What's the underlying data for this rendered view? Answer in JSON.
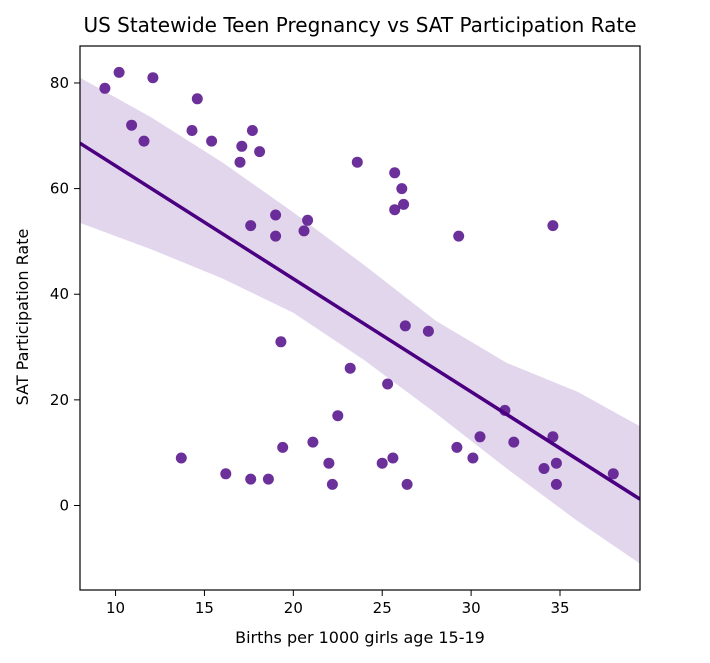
{
  "chart_data": {
    "type": "scatter",
    "title": "US Statewide Teen Pregnancy vs SAT Participation Rate",
    "xlabel": "Births per 1000 girls age 15-19",
    "ylabel": "SAT Participation Rate",
    "xlim": [
      8,
      39.5
    ],
    "ylim": [
      -16,
      87
    ],
    "xticks": [
      10,
      15,
      20,
      25,
      30,
      35
    ],
    "yticks": [
      0,
      20,
      40,
      60,
      80
    ],
    "grid": false,
    "legend": "none",
    "colors": {
      "point": "#5c1a8f",
      "regression_line": "#4b0082",
      "confidence_band": "#e2d6ec",
      "axes": "#000000"
    },
    "series": [
      {
        "points": [
          [
            9.4,
            79
          ],
          [
            10.2,
            82
          ],
          [
            10.9,
            72
          ],
          [
            11.6,
            69
          ],
          [
            12.1,
            81
          ],
          [
            14.3,
            71
          ],
          [
            14.6,
            77
          ],
          [
            15.4,
            69
          ],
          [
            17.0,
            65
          ],
          [
            17.1,
            68
          ],
          [
            17.7,
            71
          ],
          [
            18.1,
            67
          ],
          [
            17.6,
            53
          ],
          [
            19.0,
            55
          ],
          [
            19.0,
            51
          ],
          [
            20.6,
            52
          ],
          [
            20.8,
            54
          ],
          [
            23.6,
            65
          ],
          [
            25.7,
            63
          ],
          [
            26.1,
            60
          ],
          [
            26.2,
            57
          ],
          [
            25.7,
            56
          ],
          [
            29.3,
            51
          ],
          [
            34.6,
            53
          ],
          [
            26.3,
            34
          ],
          [
            27.6,
            33
          ],
          [
            19.3,
            31
          ],
          [
            23.2,
            26
          ],
          [
            25.3,
            23
          ],
          [
            22.5,
            17
          ],
          [
            31.9,
            18
          ],
          [
            13.7,
            9
          ],
          [
            19.4,
            11
          ],
          [
            21.1,
            12
          ],
          [
            22.0,
            8
          ],
          [
            22.2,
            4
          ],
          [
            25.0,
            8
          ],
          [
            25.6,
            9
          ],
          [
            26.4,
            4
          ],
          [
            16.2,
            6
          ],
          [
            17.6,
            5
          ],
          [
            18.6,
            5
          ],
          [
            29.2,
            11
          ],
          [
            30.1,
            9
          ],
          [
            30.5,
            13
          ],
          [
            32.4,
            12
          ],
          [
            34.6,
            13
          ],
          [
            34.1,
            7
          ],
          [
            34.8,
            8
          ],
          [
            34.8,
            4
          ],
          [
            38.0,
            6
          ]
        ]
      }
    ],
    "regression": {
      "x_range": [
        8,
        39.5
      ],
      "y_at_start": 68.6,
      "y_at_end": 1.2
    },
    "confidence_band": {
      "x": [
        8,
        12,
        16,
        20,
        24,
        28,
        32,
        36,
        39.5
      ],
      "upper": [
        81,
        73.5,
        65,
        55.5,
        45.5,
        35,
        27,
        21.5,
        15
      ],
      "lower": [
        53.5,
        48.5,
        43,
        36.5,
        27.5,
        17.5,
        7,
        -3,
        -11
      ]
    }
  }
}
